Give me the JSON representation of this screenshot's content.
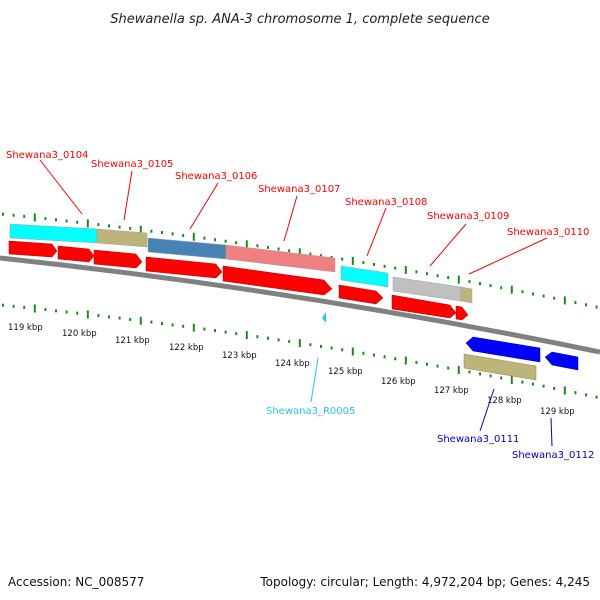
{
  "title": "Shewanella sp. ANA-3 chromosome 1, complete sequence",
  "footer": {
    "accession": "Accession: NC_008577",
    "topology": "Topology: circular; Length: 4,972,204 bp; Genes: 4,245"
  },
  "colors": {
    "cds_red": "#ff0000",
    "cyan": "#00ffff",
    "khaki": "#bdb47a",
    "steelblue": "#4682b4",
    "salmon": "#f08080",
    "gray": "#c0c0c0",
    "blue": "#0000ff",
    "rna_cyan": "#29c6e6",
    "tick_green": "#1a8a1a",
    "backbone": "#808080"
  },
  "kbp_labels": [
    "119 kbp",
    "120 kbp",
    "121 kbp",
    "122 kbp",
    "123 kbp",
    "124 kbp",
    "125 kbp",
    "126 kbp",
    "127 kbp",
    "128 kbp",
    "129 kbp"
  ],
  "features": {
    "forward": [
      {
        "label": "Shewana3_0104",
        "color": "red"
      },
      {
        "label": "Shewana3_0105",
        "color": "red"
      },
      {
        "label": "Shewana3_0106",
        "color": "red"
      },
      {
        "label": "Shewana3_0107",
        "color": "red"
      },
      {
        "label": "Shewana3_0108",
        "color": "red"
      },
      {
        "label": "Shewana3_0109",
        "color": "red"
      },
      {
        "label": "Shewana3_0110",
        "color": "red"
      }
    ],
    "reverse": [
      {
        "label": "Shewana3_R0005",
        "color": "rna"
      },
      {
        "label": "Shewana3_0111",
        "color": "blue"
      },
      {
        "label": "Shewana3_0112",
        "color": "blue"
      }
    ]
  }
}
